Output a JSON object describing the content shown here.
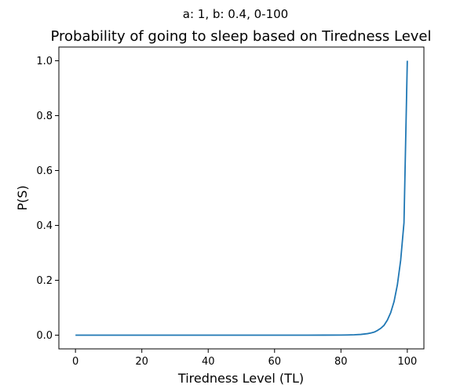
{
  "suptitle": "a: 1, b: 0.4, 0-100",
  "chart_data": {
    "type": "line",
    "title": "Probability of going to sleep based on Tiredness Level",
    "xlabel": "Tiredness Level (TL)",
    "ylabel": "P(S)",
    "xlim": [
      -5,
      105
    ],
    "ylim": [
      -0.05,
      1.05
    ],
    "xticks": [
      0,
      20,
      40,
      60,
      80,
      100
    ],
    "xtick_labels": [
      "0",
      "20",
      "40",
      "60",
      "80",
      "100"
    ],
    "yticks": [
      0.0,
      0.2,
      0.4,
      0.6,
      0.8,
      1.0
    ],
    "ytick_labels": [
      "0.0",
      "0.2",
      "0.4",
      "0.6",
      "0.8",
      "1.0"
    ],
    "grid": false,
    "line_color": "#1f77b4",
    "series": [
      {
        "x": [
          0,
          10,
          20,
          30,
          40,
          50,
          60,
          70,
          75,
          80,
          82,
          84,
          86,
          88,
          89,
          90,
          91,
          92,
          93,
          94,
          95,
          96,
          97,
          98,
          99,
          100
        ],
        "y": [
          0.0,
          0.0,
          0.0,
          0.0,
          0.0,
          0.0,
          0.0,
          0.0,
          0.0002,
          0.0003,
          0.0007,
          0.0014,
          0.0027,
          0.0055,
          0.0078,
          0.011,
          0.017,
          0.025,
          0.036,
          0.055,
          0.082,
          0.122,
          0.183,
          0.273,
          0.41,
          1.0
        ]
      }
    ]
  }
}
